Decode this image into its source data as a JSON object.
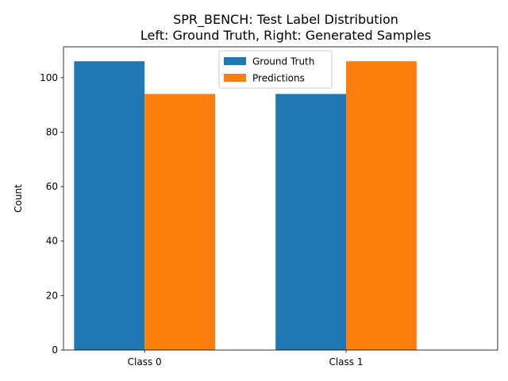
{
  "chart_data": {
    "type": "bar",
    "title": "SPR_BENCH: Test Label Distribution",
    "subtitle": "Left: Ground Truth, Right: Generated Samples",
    "xlabel": "",
    "ylabel": "Count",
    "categories": [
      "Class 0",
      "Class 1"
    ],
    "series": [
      {
        "name": "Ground Truth",
        "color": "#1f77b4",
        "values": [
          106,
          94
        ]
      },
      {
        "name": "Predictions",
        "color": "#ff7f0e",
        "values": [
          94,
          106
        ]
      }
    ],
    "ylim": [
      0,
      111.3
    ],
    "yticks": [
      0,
      20,
      40,
      60,
      80,
      100
    ],
    "grid": false,
    "legend_position": "top-center"
  }
}
